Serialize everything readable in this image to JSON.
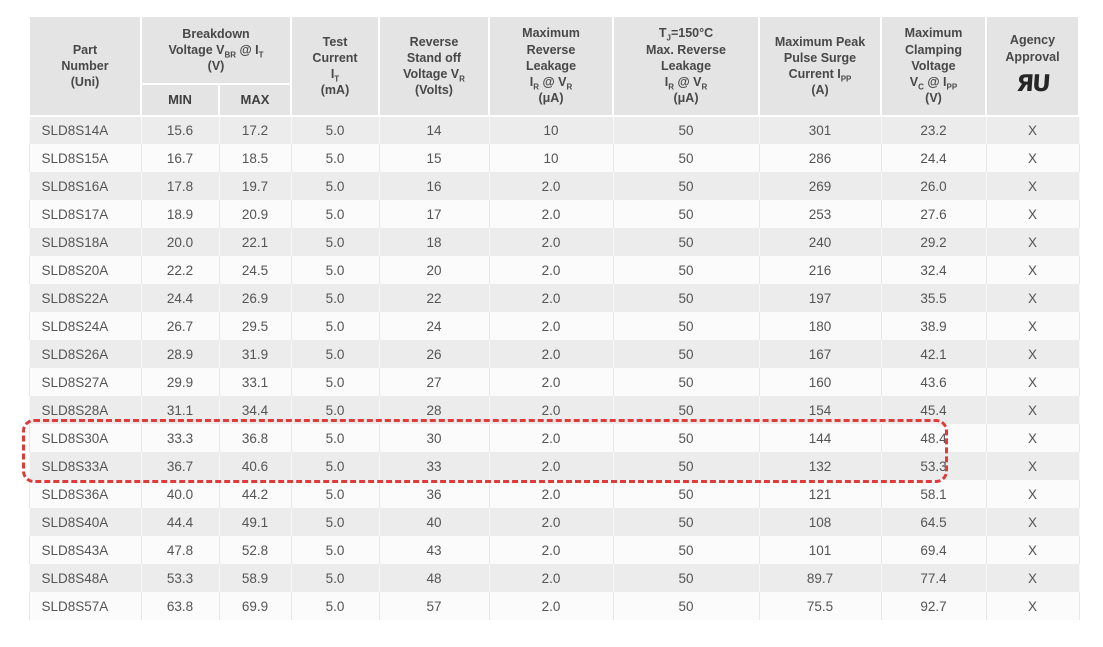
{
  "table": {
    "field_order": [
      "part",
      "min",
      "max",
      "test_current",
      "standoff",
      "max_reverse_leakage",
      "tj150_max_reverse_leakage",
      "surge_current",
      "clamping_voltage",
      "agency_approval"
    ],
    "columns": [
      {
        "id": "part",
        "label_lines": [
          "Part",
          "Number",
          "(Uni)"
        ]
      },
      {
        "id": "breakdown_voltage",
        "label_lines": [
          "Breakdown",
          "Voltage V~BR~ @ I~T~",
          "(V)"
        ],
        "subcols": [
          "MIN",
          "MAX"
        ]
      },
      {
        "id": "test_current",
        "label_lines": [
          "Test",
          "Current",
          "I~T~",
          "(mA)"
        ]
      },
      {
        "id": "standoff",
        "label_lines": [
          "Reverse",
          "Stand off",
          "Voltage V~R~",
          "(Volts)"
        ]
      },
      {
        "id": "max_reverse_leakage",
        "label_lines": [
          "Maximum",
          "Reverse",
          "Leakage",
          "I~R~ @ V~R~",
          "(μA)"
        ]
      },
      {
        "id": "tj150_max_reverse_leakage",
        "label_lines": [
          "T~J~=150°C",
          "Max. Reverse",
          "Leakage",
          "I~R~ @ V~R~",
          "(μA)"
        ]
      },
      {
        "id": "surge_current",
        "label_lines": [
          "Maximum Peak",
          "Pulse Surge",
          "Current I~PP~",
          "(A)"
        ]
      },
      {
        "id": "clamping_voltage",
        "label_lines": [
          "Maximum",
          "Clamping",
          "Voltage",
          "V~C~ @ I~PP~",
          "(V)"
        ]
      },
      {
        "id": "agency_approval",
        "label_lines": [
          "Agency",
          "Approval"
        ],
        "icon": "ul-recognized-mark"
      }
    ],
    "rows": [
      {
        "part": "SLD8S14A",
        "min": "15.6",
        "max": "17.2",
        "test_current": "5.0",
        "standoff": "14",
        "max_reverse_leakage": "10",
        "tj150_max_reverse_leakage": "50",
        "surge_current": "301",
        "clamping_voltage": "23.2",
        "agency_approval": "X"
      },
      {
        "part": "SLD8S15A",
        "min": "16.7",
        "max": "18.5",
        "test_current": "5.0",
        "standoff": "15",
        "max_reverse_leakage": "10",
        "tj150_max_reverse_leakage": "50",
        "surge_current": "286",
        "clamping_voltage": "24.4",
        "agency_approval": "X"
      },
      {
        "part": "SLD8S16A",
        "min": "17.8",
        "max": "19.7",
        "test_current": "5.0",
        "standoff": "16",
        "max_reverse_leakage": "2.0",
        "tj150_max_reverse_leakage": "50",
        "surge_current": "269",
        "clamping_voltage": "26.0",
        "agency_approval": "X"
      },
      {
        "part": "SLD8S17A",
        "min": "18.9",
        "max": "20.9",
        "test_current": "5.0",
        "standoff": "17",
        "max_reverse_leakage": "2.0",
        "tj150_max_reverse_leakage": "50",
        "surge_current": "253",
        "clamping_voltage": "27.6",
        "agency_approval": "X"
      },
      {
        "part": "SLD8S18A",
        "min": "20.0",
        "max": "22.1",
        "test_current": "5.0",
        "standoff": "18",
        "max_reverse_leakage": "2.0",
        "tj150_max_reverse_leakage": "50",
        "surge_current": "240",
        "clamping_voltage": "29.2",
        "agency_approval": "X"
      },
      {
        "part": "SLD8S20A",
        "min": "22.2",
        "max": "24.5",
        "test_current": "5.0",
        "standoff": "20",
        "max_reverse_leakage": "2.0",
        "tj150_max_reverse_leakage": "50",
        "surge_current": "216",
        "clamping_voltage": "32.4",
        "agency_approval": "X"
      },
      {
        "part": "SLD8S22A",
        "min": "24.4",
        "max": "26.9",
        "test_current": "5.0",
        "standoff": "22",
        "max_reverse_leakage": "2.0",
        "tj150_max_reverse_leakage": "50",
        "surge_current": "197",
        "clamping_voltage": "35.5",
        "agency_approval": "X"
      },
      {
        "part": "SLD8S24A",
        "min": "26.7",
        "max": "29.5",
        "test_current": "5.0",
        "standoff": "24",
        "max_reverse_leakage": "2.0",
        "tj150_max_reverse_leakage": "50",
        "surge_current": "180",
        "clamping_voltage": "38.9",
        "agency_approval": "X"
      },
      {
        "part": "SLD8S26A",
        "min": "28.9",
        "max": "31.9",
        "test_current": "5.0",
        "standoff": "26",
        "max_reverse_leakage": "2.0",
        "tj150_max_reverse_leakage": "50",
        "surge_current": "167",
        "clamping_voltage": "42.1",
        "agency_approval": "X"
      },
      {
        "part": "SLD8S27A",
        "min": "29.9",
        "max": "33.1",
        "test_current": "5.0",
        "standoff": "27",
        "max_reverse_leakage": "2.0",
        "tj150_max_reverse_leakage": "50",
        "surge_current": "160",
        "clamping_voltage": "43.6",
        "agency_approval": "X"
      },
      {
        "part": "SLD8S28A",
        "min": "31.1",
        "max": "34.4",
        "test_current": "5.0",
        "standoff": "28",
        "max_reverse_leakage": "2.0",
        "tj150_max_reverse_leakage": "50",
        "surge_current": "154",
        "clamping_voltage": "45.4",
        "agency_approval": "X"
      },
      {
        "part": "SLD8S30A",
        "min": "33.3",
        "max": "36.8",
        "test_current": "5.0",
        "standoff": "30",
        "max_reverse_leakage": "2.0",
        "tj150_max_reverse_leakage": "50",
        "surge_current": "144",
        "clamping_voltage": "48.4",
        "agency_approval": "X"
      },
      {
        "part": "SLD8S33A",
        "min": "36.7",
        "max": "40.6",
        "test_current": "5.0",
        "standoff": "33",
        "max_reverse_leakage": "2.0",
        "tj150_max_reverse_leakage": "50",
        "surge_current": "132",
        "clamping_voltage": "53.3",
        "agency_approval": "X"
      },
      {
        "part": "SLD8S36A",
        "min": "40.0",
        "max": "44.2",
        "test_current": "5.0",
        "standoff": "36",
        "max_reverse_leakage": "2.0",
        "tj150_max_reverse_leakage": "50",
        "surge_current": "121",
        "clamping_voltage": "58.1",
        "agency_approval": "X"
      },
      {
        "part": "SLD8S40A",
        "min": "44.4",
        "max": "49.1",
        "test_current": "5.0",
        "standoff": "40",
        "max_reverse_leakage": "2.0",
        "tj150_max_reverse_leakage": "50",
        "surge_current": "108",
        "clamping_voltage": "64.5",
        "agency_approval": "X"
      },
      {
        "part": "SLD8S43A",
        "min": "47.8",
        "max": "52.8",
        "test_current": "5.0",
        "standoff": "43",
        "max_reverse_leakage": "2.0",
        "tj150_max_reverse_leakage": "50",
        "surge_current": "101",
        "clamping_voltage": "69.4",
        "agency_approval": "X"
      },
      {
        "part": "SLD8S48A",
        "min": "53.3",
        "max": "58.9",
        "test_current": "5.0",
        "standoff": "48",
        "max_reverse_leakage": "2.0",
        "tj150_max_reverse_leakage": "50",
        "surge_current": "89.7",
        "clamping_voltage": "77.4",
        "agency_approval": "X"
      },
      {
        "part": "SLD8S57A",
        "min": "63.8",
        "max": "69.9",
        "test_current": "5.0",
        "standoff": "57",
        "max_reverse_leakage": "2.0",
        "tj150_max_reverse_leakage": "50",
        "surge_current": "75.5",
        "clamping_voltage": "92.7",
        "agency_approval": "X"
      }
    ],
    "highlight": {
      "rows": [
        "SLD8S30A",
        "SLD8S33A"
      ],
      "color": "#df3b3b",
      "style": "dashed-box"
    }
  },
  "icons": {
    "ul-recognized-mark": "ЯU"
  },
  "colors": {
    "header_bg": "#e4e4e4",
    "stripe_bg": "#ececec",
    "row_bg": "#fbfbfb",
    "text": "#545454",
    "highlight_red": "#df3b3b"
  }
}
